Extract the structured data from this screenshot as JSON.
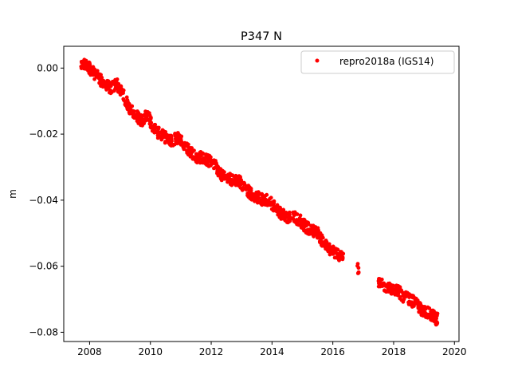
{
  "chart_data": {
    "type": "scatter",
    "title": "P347 N",
    "xlabel": "",
    "ylabel": "m",
    "xlim": [
      2007.15,
      2020.15
    ],
    "ylim": [
      -0.0828,
      0.0066
    ],
    "xticks": [
      2008,
      2010,
      2012,
      2014,
      2016,
      2018,
      2020
    ],
    "xtick_labels": [
      "2008",
      "2010",
      "2012",
      "2014",
      "2016",
      "2018",
      "2020"
    ],
    "yticks": [
      0.0,
      -0.02,
      -0.04,
      -0.06,
      -0.08
    ],
    "ytick_labels": [
      "0.00",
      "−0.02",
      "−0.04",
      "−0.06",
      "−0.08"
    ],
    "grid": false,
    "legend_position": "top-right",
    "series": [
      {
        "name": "repro2018a (IGS14)",
        "color": "#ff0000",
        "marker": "circle",
        "x": [
          2007.7,
          2007.9,
          2008.1,
          2008.3,
          2008.5,
          2008.7,
          2008.9,
          2009.1,
          2009.3,
          2009.5,
          2009.7,
          2009.9,
          2010.1,
          2010.3,
          2010.5,
          2010.7,
          2010.9,
          2011.1,
          2011.3,
          2011.5,
          2011.7,
          2011.9,
          2012.1,
          2012.3,
          2012.5,
          2012.7,
          2012.9,
          2013.1,
          2013.3,
          2013.5,
          2013.7,
          2013.9,
          2014.1,
          2014.3,
          2014.5,
          2014.7,
          2014.9,
          2015.1,
          2015.3,
          2015.5,
          2015.7,
          2015.9,
          2016.1,
          2016.3,
          2016.8,
          2017.5,
          2017.7,
          2017.9,
          2018.1,
          2018.3,
          2018.5,
          2018.7,
          2018.9,
          2019.1,
          2019.3,
          2019.4
        ],
        "y": [
          0.0005,
          0.001,
          -0.001,
          -0.003,
          -0.005,
          -0.006,
          -0.005,
          -0.008,
          -0.012,
          -0.014,
          -0.016,
          -0.014,
          -0.018,
          -0.02,
          -0.021,
          -0.022,
          -0.021,
          -0.023,
          -0.025,
          -0.027,
          -0.027,
          -0.028,
          -0.029,
          -0.032,
          -0.033,
          -0.034,
          -0.034,
          -0.036,
          -0.038,
          -0.039,
          -0.04,
          -0.04,
          -0.042,
          -0.044,
          -0.045,
          -0.045,
          -0.046,
          -0.048,
          -0.049,
          -0.05,
          -0.053,
          -0.055,
          -0.056,
          -0.057,
          -0.061,
          -0.065,
          -0.066,
          -0.067,
          -0.067,
          -0.069,
          -0.07,
          -0.071,
          -0.073,
          -0.074,
          -0.075,
          -0.076
        ]
      }
    ]
  }
}
